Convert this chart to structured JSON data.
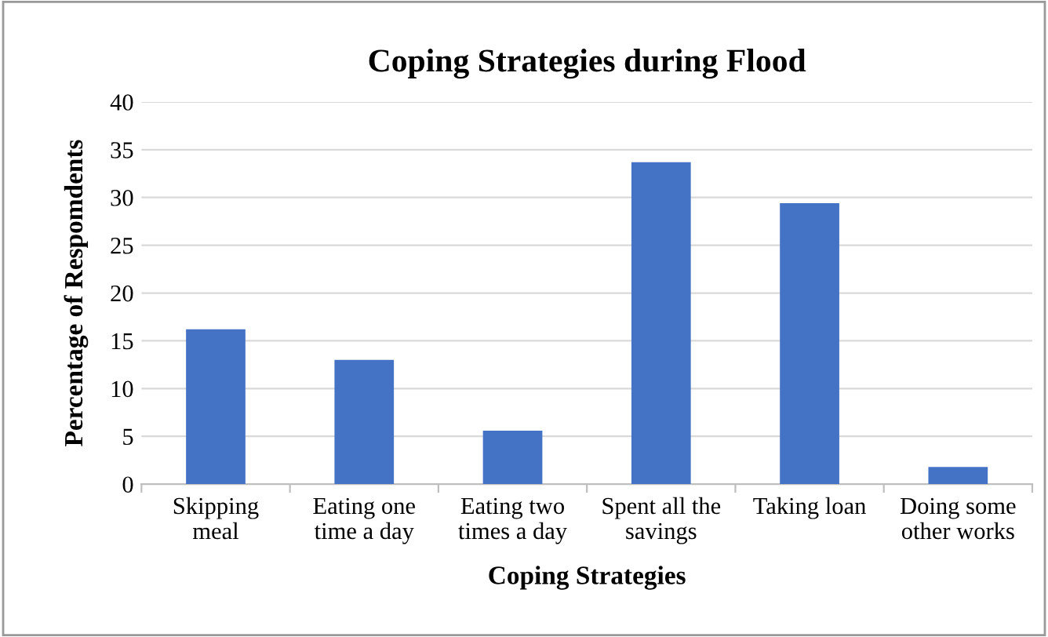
{
  "chart_data": {
    "type": "bar",
    "title": "Coping Strategies during Flood",
    "xlabel": "Coping Strategies",
    "ylabel": "Percentage of Respomdents",
    "categories": [
      "Skipping\nmeal",
      "Eating one\ntime a day",
      "Eating two\ntimes a day",
      "Spent all the\nsavings",
      "Taking loan",
      "Doing some\nother works"
    ],
    "values": [
      16.2,
      13.0,
      5.6,
      33.7,
      29.4,
      1.8
    ],
    "color": "#4472c4",
    "ylim": [
      0,
      40
    ],
    "yticks": [
      0,
      5,
      10,
      15,
      20,
      25,
      30,
      35,
      40
    ],
    "grid": "y",
    "legend": false
  }
}
